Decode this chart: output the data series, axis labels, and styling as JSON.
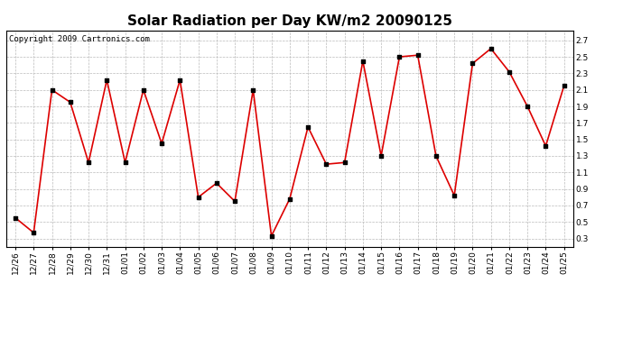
{
  "title": "Solar Radiation per Day KW/m2 20090125",
  "copyright": "Copyright 2009 Cartronics.com",
  "dates": [
    "12/26",
    "12/27",
    "12/28",
    "12/29",
    "12/30",
    "12/31",
    "01/01",
    "01/02",
    "01/03",
    "01/04",
    "01/05",
    "01/06",
    "01/07",
    "01/08",
    "01/09",
    "01/10",
    "01/11",
    "01/12",
    "01/13",
    "01/14",
    "01/15",
    "01/16",
    "01/17",
    "01/18",
    "01/19",
    "01/20",
    "01/21",
    "01/22",
    "01/23",
    "01/24",
    "01/25"
  ],
  "values": [
    0.55,
    0.37,
    2.1,
    1.95,
    1.22,
    2.22,
    1.22,
    2.1,
    1.45,
    2.22,
    0.8,
    0.97,
    0.75,
    2.1,
    0.33,
    0.78,
    1.65,
    1.2,
    1.22,
    2.45,
    1.3,
    2.5,
    2.52,
    1.3,
    0.82,
    2.42,
    2.6,
    2.32,
    1.9,
    1.42,
    2.15
  ],
  "line_color": "#dd0000",
  "marker_color": "#000000",
  "background_color": "#ffffff",
  "plot_bg_color": "#ffffff",
  "grid_color": "#bbbbbb",
  "title_fontsize": 11,
  "copyright_fontsize": 6.5,
  "tick_fontsize": 6.5,
  "ylim": [
    0.2,
    2.82
  ],
  "yticks": [
    0.3,
    0.5,
    0.7,
    0.9,
    1.1,
    1.3,
    1.5,
    1.7,
    1.9,
    2.1,
    2.3,
    2.5,
    2.7
  ]
}
